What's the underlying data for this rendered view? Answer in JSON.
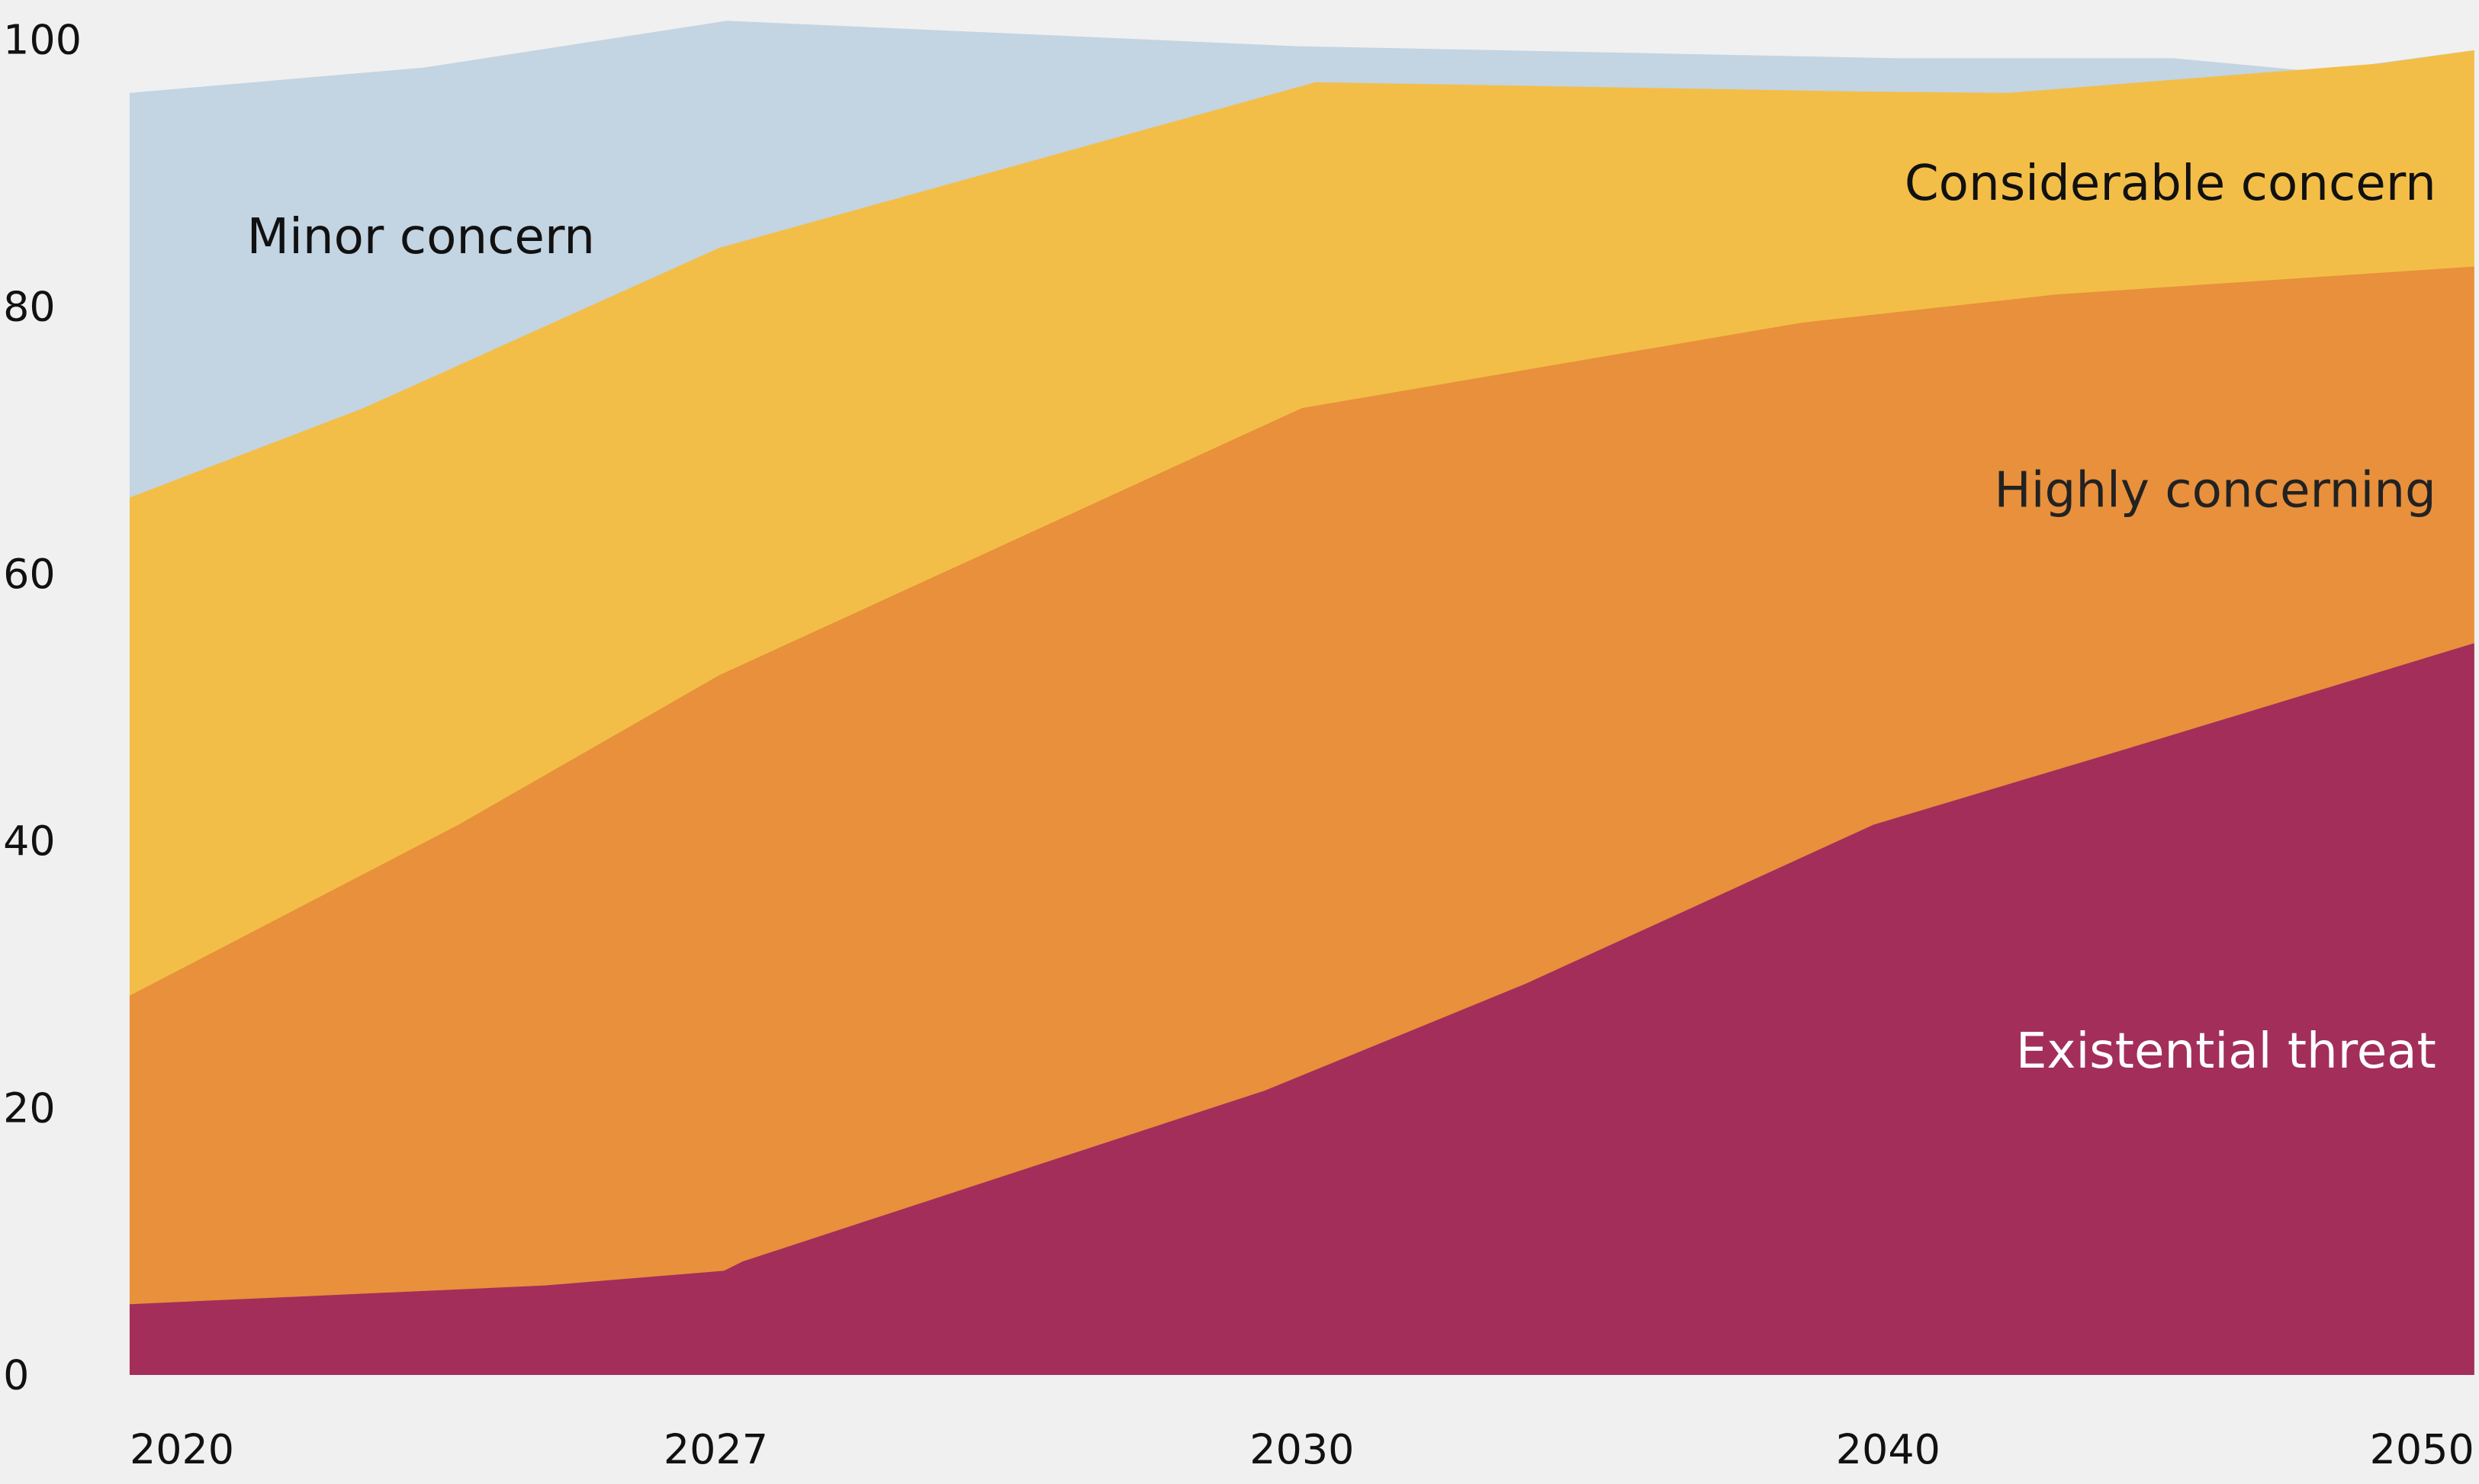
{
  "chart_data": {
    "type": "area",
    "stacked": true,
    "x_categories": [
      "2020",
      "2027",
      "2030",
      "2040",
      "2050"
    ],
    "x_note": "x positions below are in category-index units (0 = 2020 ... 4 = 2050); y values are cumulative percentages",
    "y_ticks": [
      "0",
      "20",
      "40",
      "60",
      "80",
      "100"
    ],
    "ylim": [
      0,
      100
    ],
    "grid": false,
    "background": "#f0f0f0",
    "series": [
      {
        "name": "Minor concern",
        "color": "#c3d4e2",
        "label_color": "#111111",
        "label_anchor": "start",
        "points": [
          [
            0,
            96.0
          ],
          [
            0.502,
            97.9
          ],
          [
            1.019,
            101.4
          ],
          [
            1.99,
            99.5
          ],
          [
            3.015,
            98.6
          ],
          [
            3.487,
            98.6
          ],
          [
            3.73,
            97.6
          ],
          [
            4,
            99.2
          ]
        ],
        "label_at": [
          0.2,
          84
        ]
      },
      {
        "name": "Considerable concern",
        "color": "#f3be47",
        "label_color": "#111111",
        "label_anchor": "end",
        "points": [
          [
            0,
            65.7
          ],
          [
            0.399,
            72.4
          ],
          [
            1.006,
            84.4
          ],
          [
            2.023,
            96.8
          ],
          [
            2.961,
            96.1
          ],
          [
            3.204,
            96.0
          ],
          [
            3.663,
            97.6
          ],
          [
            3.838,
            98.2
          ],
          [
            4,
            99.2
          ]
        ],
        "label_at": [
          3.935,
          88
        ]
      },
      {
        "name": "Highly concerning",
        "color": "#e8903c",
        "label_color": "#222222",
        "label_anchor": "end",
        "points": [
          [
            0,
            28.4
          ],
          [
            0.561,
            41.2
          ],
          [
            1.006,
            52.4
          ],
          [
            2.0,
            72.4
          ],
          [
            2.853,
            78.8
          ],
          [
            3.285,
            80.9
          ],
          [
            4,
            83.0
          ]
        ],
        "label_at": [
          3.935,
          65
        ]
      },
      {
        "name": "Existential threat",
        "color": "#a32e5a",
        "label_color": "#ffffff",
        "label_anchor": "end",
        "points": [
          [
            0,
            5.3
          ],
          [
            0.709,
            6.7
          ],
          [
            1.014,
            7.8
          ],
          [
            1.046,
            8.5
          ],
          [
            1.937,
            21.3
          ],
          [
            2.382,
            29.3
          ],
          [
            2.975,
            41.2
          ],
          [
            3.461,
            47.6
          ],
          [
            4,
            54.8
          ]
        ],
        "label_at": [
          3.935,
          23
        ]
      }
    ]
  }
}
